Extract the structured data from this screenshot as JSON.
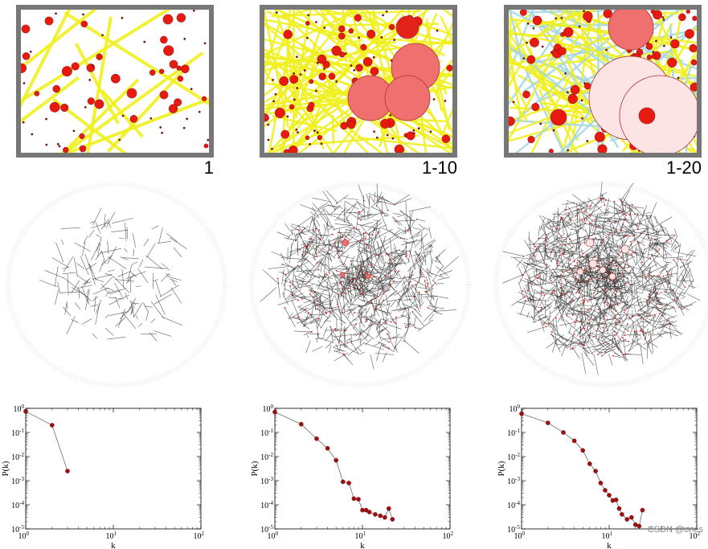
{
  "panels": [
    {
      "label": "1"
    },
    {
      "label": "1-10"
    },
    {
      "label": "1-20"
    }
  ],
  "colors": {
    "frame": "#777777",
    "road": "#f0f020",
    "road_alt": "#a8d8e0",
    "node": "#e8190f",
    "big_node": "#f07070",
    "pale_node": "#fde4e4",
    "edge": "#333333",
    "plot_line": "#555555",
    "plot_point": "#a01010"
  },
  "chart_data": [
    {
      "type": "line",
      "title": "",
      "xlabel": "k",
      "ylabel": "P(k)",
      "xscale": "log",
      "yscale": "log",
      "xlim": [
        1,
        100
      ],
      "ylim": [
        1e-05,
        1
      ],
      "x_tick_labels": [
        "10^0",
        "10^1",
        "10^2"
      ],
      "y_tick_labels": [
        "10^0",
        "10^-1",
        "10^-2",
        "10^-3",
        "10^-4",
        "10^-5"
      ],
      "x": [
        1,
        2,
        3
      ],
      "y": [
        0.75,
        0.2,
        0.0025
      ]
    },
    {
      "type": "line",
      "title": "",
      "xlabel": "k",
      "ylabel": "P(k)",
      "xscale": "log",
      "yscale": "log",
      "xlim": [
        1,
        100
      ],
      "ylim": [
        1e-05,
        1
      ],
      "x_tick_labels": [
        "10^0",
        "10^1",
        "10^2"
      ],
      "y_tick_labels": [
        "10^0",
        "10^-1",
        "10^-2",
        "10^-3",
        "10^-4",
        "10^-5"
      ],
      "x": [
        1,
        2,
        3,
        4,
        5,
        6,
        7,
        8,
        9,
        10,
        11,
        12,
        14,
        16,
        18,
        20,
        22
      ],
      "y": [
        0.7,
        0.22,
        0.055,
        0.022,
        0.007,
        0.0009,
        0.0008,
        0.00018,
        0.00017,
        6e-05,
        6e-05,
        5e-05,
        4e-05,
        3.5e-05,
        3e-05,
        7e-05,
        2.5e-05
      ]
    },
    {
      "type": "line",
      "title": "",
      "xlabel": "k",
      "ylabel": "P(k)",
      "xscale": "log",
      "yscale": "log",
      "xlim": [
        1,
        100
      ],
      "ylim": [
        1e-05,
        1
      ],
      "x_tick_labels": [
        "10^0",
        "10^1",
        "10^2"
      ],
      "y_tick_labels": [
        "10^0",
        "10^-1",
        "10^-2",
        "10^-3",
        "10^-4",
        "10^-5"
      ],
      "x": [
        1,
        2,
        3,
        4,
        5,
        6,
        7,
        8,
        9,
        10,
        11,
        12,
        13,
        14,
        16,
        18,
        20,
        22,
        24
      ],
      "y": [
        0.6,
        0.25,
        0.1,
        0.045,
        0.018,
        0.005,
        0.0025,
        0.0008,
        0.0004,
        0.00025,
        0.00015,
        0.00016,
        7e-05,
        4e-05,
        2.5e-05,
        3e-05,
        1.5e-05,
        1.3e-05,
        6e-05
      ]
    }
  ],
  "watermark": "CSDN @ones"
}
